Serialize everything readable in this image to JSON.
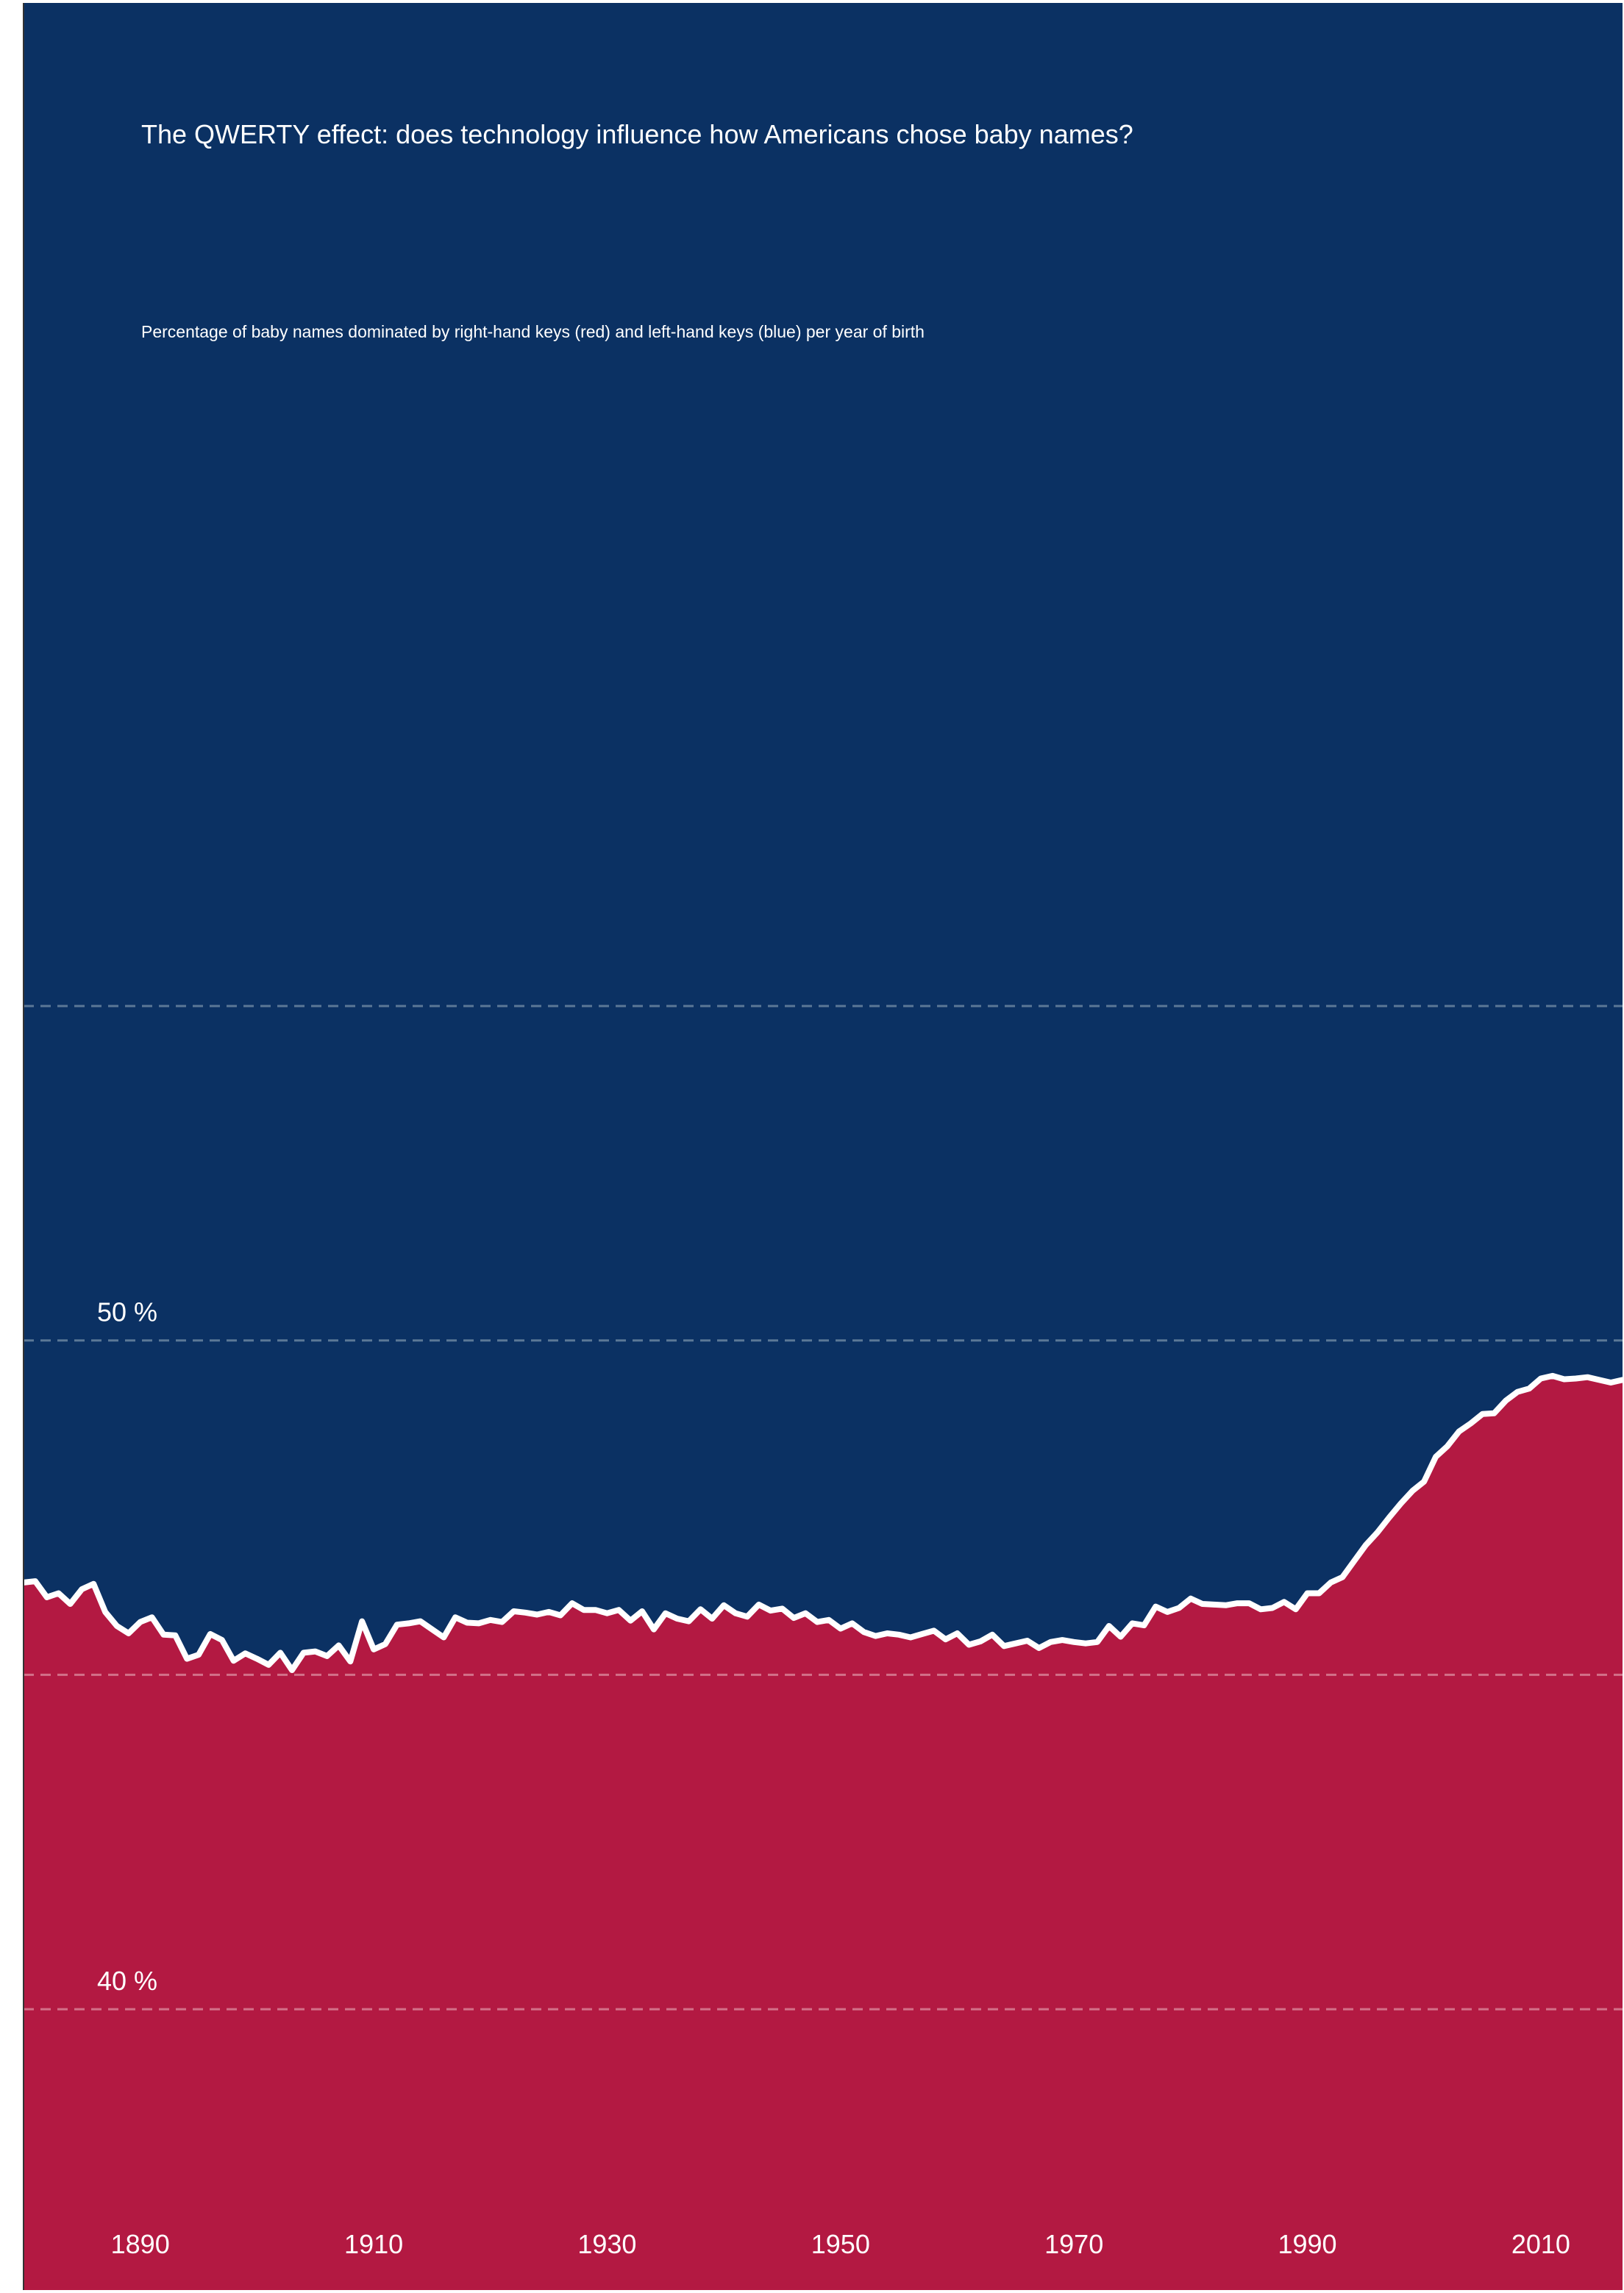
{
  "chart_data": {
    "type": "area",
    "title": "The QWERTY effect: does technology influence how Americans chose baby names?",
    "subtitle": "Percentage of baby names dominated by right-hand keys (red) and left-hand keys (blue) per year of birth",
    "xlabel": "",
    "ylabel": "",
    "xlim": [
      1880,
      2017
    ],
    "ylim": [
      35.8,
      70
    ],
    "x_ticks": [
      1890,
      1910,
      1930,
      1950,
      1970,
      1990,
      2010
    ],
    "x_tick_labels": [
      "1890",
      "1910",
      "1930",
      "1950",
      "1970",
      "1990",
      "2010"
    ],
    "y_gridlines": [
      40,
      45,
      50,
      55
    ],
    "y_tick_labels": [
      {
        "value": 40,
        "label": "40 %"
      },
      {
        "value": 50,
        "label": "50 %"
      }
    ],
    "grid": true,
    "legend": "none",
    "colors": {
      "upper_area": "#0b3163",
      "lower_area": "#b31942",
      "line": "#ffffff",
      "grid_upper": "#5b7896",
      "grid_lower": "#d37089"
    },
    "series": [
      {
        "values": [
          {
            "x": 1880,
            "y": 46.38
          },
          {
            "x": 1881,
            "y": 46.4
          },
          {
            "x": 1882,
            "y": 46.16
          },
          {
            "x": 1883,
            "y": 46.22
          },
          {
            "x": 1884,
            "y": 46.06
          },
          {
            "x": 1885,
            "y": 46.28
          },
          {
            "x": 1886,
            "y": 46.36
          },
          {
            "x": 1887,
            "y": 45.94
          },
          {
            "x": 1888,
            "y": 45.73
          },
          {
            "x": 1889,
            "y": 45.62
          },
          {
            "x": 1890,
            "y": 45.79
          },
          {
            "x": 1891,
            "y": 45.86
          },
          {
            "x": 1892,
            "y": 45.6
          },
          {
            "x": 1893,
            "y": 45.59
          },
          {
            "x": 1894,
            "y": 45.24
          },
          {
            "x": 1895,
            "y": 45.3
          },
          {
            "x": 1896,
            "y": 45.61
          },
          {
            "x": 1897,
            "y": 45.52
          },
          {
            "x": 1898,
            "y": 45.21
          },
          {
            "x": 1899,
            "y": 45.32
          },
          {
            "x": 1900,
            "y": 45.24
          },
          {
            "x": 1901,
            "y": 45.15
          },
          {
            "x": 1902,
            "y": 45.33
          },
          {
            "x": 1903,
            "y": 45.07
          },
          {
            "x": 1904,
            "y": 45.33
          },
          {
            "x": 1905,
            "y": 45.35
          },
          {
            "x": 1906,
            "y": 45.28
          },
          {
            "x": 1907,
            "y": 45.44
          },
          {
            "x": 1908,
            "y": 45.2
          },
          {
            "x": 1909,
            "y": 45.8
          },
          {
            "x": 1910,
            "y": 45.38
          },
          {
            "x": 1911,
            "y": 45.46
          },
          {
            "x": 1912,
            "y": 45.75
          },
          {
            "x": 1913,
            "y": 45.77
          },
          {
            "x": 1914,
            "y": 45.8
          },
          {
            "x": 1915,
            "y": 45.68
          },
          {
            "x": 1916,
            "y": 45.56
          },
          {
            "x": 1917,
            "y": 45.86
          },
          {
            "x": 1918,
            "y": 45.78
          },
          {
            "x": 1919,
            "y": 45.77
          },
          {
            "x": 1920,
            "y": 45.82
          },
          {
            "x": 1921,
            "y": 45.79
          },
          {
            "x": 1922,
            "y": 45.95
          },
          {
            "x": 1923,
            "y": 45.93
          },
          {
            "x": 1924,
            "y": 45.9
          },
          {
            "x": 1925,
            "y": 45.94
          },
          {
            "x": 1926,
            "y": 45.89
          },
          {
            "x": 1927,
            "y": 46.07
          },
          {
            "x": 1928,
            "y": 45.97
          },
          {
            "x": 1929,
            "y": 45.97
          },
          {
            "x": 1930,
            "y": 45.92
          },
          {
            "x": 1931,
            "y": 45.97
          },
          {
            "x": 1932,
            "y": 45.81
          },
          {
            "x": 1933,
            "y": 45.95
          },
          {
            "x": 1934,
            "y": 45.68
          },
          {
            "x": 1935,
            "y": 45.92
          },
          {
            "x": 1936,
            "y": 45.84
          },
          {
            "x": 1937,
            "y": 45.8
          },
          {
            "x": 1938,
            "y": 45.98
          },
          {
            "x": 1939,
            "y": 45.84
          },
          {
            "x": 1940,
            "y": 46.04
          },
          {
            "x": 1941,
            "y": 45.92
          },
          {
            "x": 1942,
            "y": 45.87
          },
          {
            "x": 1943,
            "y": 46.05
          },
          {
            "x": 1944,
            "y": 45.96
          },
          {
            "x": 1945,
            "y": 45.99
          },
          {
            "x": 1946,
            "y": 45.85
          },
          {
            "x": 1947,
            "y": 45.92
          },
          {
            "x": 1948,
            "y": 45.79
          },
          {
            "x": 1949,
            "y": 45.82
          },
          {
            "x": 1950,
            "y": 45.69
          },
          {
            "x": 1951,
            "y": 45.77
          },
          {
            "x": 1952,
            "y": 45.64
          },
          {
            "x": 1953,
            "y": 45.58
          },
          {
            "x": 1954,
            "y": 45.62
          },
          {
            "x": 1955,
            "y": 45.6
          },
          {
            "x": 1956,
            "y": 45.56
          },
          {
            "x": 1957,
            "y": 45.61
          },
          {
            "x": 1958,
            "y": 45.66
          },
          {
            "x": 1959,
            "y": 45.53
          },
          {
            "x": 1960,
            "y": 45.62
          },
          {
            "x": 1961,
            "y": 45.45
          },
          {
            "x": 1962,
            "y": 45.5
          },
          {
            "x": 1963,
            "y": 45.6
          },
          {
            "x": 1964,
            "y": 45.43
          },
          {
            "x": 1965,
            "y": 45.47
          },
          {
            "x": 1966,
            "y": 45.51
          },
          {
            "x": 1967,
            "y": 45.4
          },
          {
            "x": 1968,
            "y": 45.49
          },
          {
            "x": 1969,
            "y": 45.52
          },
          {
            "x": 1970,
            "y": 45.49
          },
          {
            "x": 1971,
            "y": 45.47
          },
          {
            "x": 1972,
            "y": 45.49
          },
          {
            "x": 1973,
            "y": 45.73
          },
          {
            "x": 1974,
            "y": 45.57
          },
          {
            "x": 1975,
            "y": 45.77
          },
          {
            "x": 1976,
            "y": 45.74
          },
          {
            "x": 1977,
            "y": 46.02
          },
          {
            "x": 1978,
            "y": 45.94
          },
          {
            "x": 1979,
            "y": 46.0
          },
          {
            "x": 1980,
            "y": 46.14
          },
          {
            "x": 1981,
            "y": 46.06
          },
          {
            "x": 1982,
            "y": 46.05
          },
          {
            "x": 1983,
            "y": 46.04
          },
          {
            "x": 1984,
            "y": 46.07
          },
          {
            "x": 1985,
            "y": 46.07
          },
          {
            "x": 1986,
            "y": 45.98
          },
          {
            "x": 1987,
            "y": 46.0
          },
          {
            "x": 1988,
            "y": 46.09
          },
          {
            "x": 1989,
            "y": 45.98
          },
          {
            "x": 1990,
            "y": 46.22
          },
          {
            "x": 1991,
            "y": 46.22
          },
          {
            "x": 1992,
            "y": 46.38
          },
          {
            "x": 1993,
            "y": 46.46
          },
          {
            "x": 1994,
            "y": 46.7
          },
          {
            "x": 1995,
            "y": 46.94
          },
          {
            "x": 1996,
            "y": 47.13
          },
          {
            "x": 1997,
            "y": 47.35
          },
          {
            "x": 1998,
            "y": 47.56
          },
          {
            "x": 1999,
            "y": 47.75
          },
          {
            "x": 2000,
            "y": 47.89
          },
          {
            "x": 2001,
            "y": 48.26
          },
          {
            "x": 2002,
            "y": 48.42
          },
          {
            "x": 2003,
            "y": 48.64
          },
          {
            "x": 2004,
            "y": 48.76
          },
          {
            "x": 2005,
            "y": 48.9
          },
          {
            "x": 2006,
            "y": 48.91
          },
          {
            "x": 2007,
            "y": 49.1
          },
          {
            "x": 2008,
            "y": 49.23
          },
          {
            "x": 2009,
            "y": 49.28
          },
          {
            "x": 2010,
            "y": 49.43
          },
          {
            "x": 2011,
            "y": 49.47
          },
          {
            "x": 2012,
            "y": 49.42
          },
          {
            "x": 2013,
            "y": 49.43
          },
          {
            "x": 2014,
            "y": 49.45
          },
          {
            "x": 2015,
            "y": 49.41
          },
          {
            "x": 2016,
            "y": 49.37
          },
          {
            "x": 2017,
            "y": 49.41
          }
        ]
      }
    ]
  }
}
